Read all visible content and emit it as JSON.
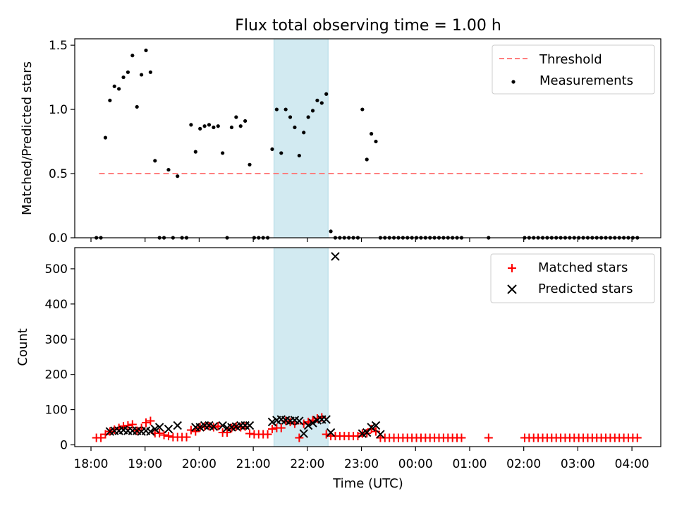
{
  "chart_data": [
    {
      "type": "scatter",
      "title": "Flux total observing time = 1.00 h",
      "xlabel": "",
      "ylabel": "Matched/Predicted stars",
      "ylim": [
        0,
        1.55
      ],
      "yticks": [
        "0.0",
        "0.5",
        "1.0",
        "1.5"
      ],
      "xlim": [
        "17:42",
        "04:32"
      ],
      "highlight_span": {
        "start": "21:23",
        "end": "22:23",
        "color": "#add8e6"
      },
      "legend": {
        "position": "top-right",
        "entries": [
          "Threshold",
          "Measurements"
        ]
      },
      "series": [
        {
          "name": "Threshold",
          "style": "dashed-line",
          "color": "#ff7f7f",
          "x": [
            "18:09",
            "04:12"
          ],
          "y": [
            0.5,
            0.5
          ]
        },
        {
          "name": "Measurements",
          "style": "dot",
          "color": "#000000",
          "x": [
            "18:06",
            "18:11",
            "18:16",
            "18:21",
            "18:26",
            "18:31",
            "18:36",
            "18:41",
            "18:46",
            "18:51",
            "18:56",
            "19:01",
            "19:06",
            "19:11",
            "19:16",
            "19:21",
            "19:26",
            "19:31",
            "19:36",
            "19:41",
            "19:46",
            "19:51",
            "19:56",
            "20:01",
            "20:06",
            "20:11",
            "20:16",
            "20:21",
            "20:26",
            "20:31",
            "20:36",
            "20:41",
            "20:46",
            "20:51",
            "20:56",
            "21:01",
            "21:06",
            "21:11",
            "21:16",
            "21:21",
            "21:26",
            "21:31",
            "21:36",
            "21:41",
            "21:46",
            "21:51",
            "21:56",
            "22:01",
            "22:06",
            "22:11",
            "22:16",
            "22:21",
            "22:26",
            "22:31",
            "22:36",
            "22:41",
            "22:46",
            "22:51",
            "22:56",
            "23:01",
            "23:06",
            "23:11",
            "23:16",
            "23:21",
            "23:26",
            "23:31",
            "23:36",
            "23:41",
            "23:46",
            "23:51",
            "23:56",
            "00:01",
            "00:06",
            "00:11",
            "00:16",
            "00:21",
            "00:26",
            "00:31",
            "00:36",
            "00:41",
            "00:46",
            "00:51",
            "01:21",
            "02:01",
            "02:06",
            "02:11",
            "02:16",
            "02:21",
            "02:26",
            "02:31",
            "02:36",
            "02:41",
            "02:46",
            "02:51",
            "02:56",
            "03:01",
            "03:06",
            "03:11",
            "03:16",
            "03:21",
            "03:26",
            "03:31",
            "03:36",
            "03:41",
            "03:46",
            "03:51",
            "03:56",
            "04:01",
            "04:06"
          ],
          "y": [
            0,
            0,
            0.78,
            1.07,
            1.18,
            1.16,
            1.25,
            1.29,
            1.42,
            1.02,
            1.27,
            1.46,
            1.29,
            0.6,
            0,
            0,
            0.53,
            0,
            0.48,
            0,
            0,
            0.88,
            0.67,
            0.85,
            0.87,
            0.88,
            0.86,
            0.87,
            0.66,
            0,
            0.86,
            0.94,
            0.87,
            0.91,
            0.57,
            0,
            0,
            0,
            0,
            0.69,
            1.0,
            0.66,
            1.0,
            0.94,
            0.86,
            0.64,
            0.82,
            0.94,
            0.99,
            1.07,
            1.05,
            1.12,
            0.05,
            0,
            0,
            0,
            0,
            0,
            0,
            1.0,
            0.61,
            0.81,
            0.75,
            0,
            0,
            0,
            0,
            0,
            0,
            0,
            0,
            0,
            0,
            0,
            0,
            0,
            0,
            0,
            0,
            0,
            0,
            0,
            0,
            0,
            0,
            0,
            0,
            0,
            0,
            0,
            0,
            0,
            0,
            0,
            0,
            0,
            0,
            0,
            0,
            0,
            0,
            0,
            0,
            0,
            0,
            0,
            0,
            0,
            0
          ]
        }
      ]
    },
    {
      "type": "scatter",
      "title": "",
      "xlabel": "Time (UTC)",
      "ylabel": "Count",
      "ylim": [
        -5,
        560
      ],
      "yticks": [
        "0",
        "100",
        "200",
        "300",
        "400",
        "500"
      ],
      "xlim": [
        "17:42",
        "04:32"
      ],
      "xticks": [
        "18:00",
        "19:00",
        "20:00",
        "21:00",
        "22:00",
        "23:00",
        "00:00",
        "01:00",
        "02:00",
        "03:00",
        "04:00"
      ],
      "highlight_span": {
        "start": "21:23",
        "end": "22:23",
        "color": "#add8e6"
      },
      "legend": {
        "position": "top-right",
        "entries": [
          "Matched stars",
          "Predicted stars"
        ]
      },
      "series": [
        {
          "name": "Matched stars",
          "marker": "+",
          "color": "#ff0000",
          "x": [
            "18:06",
            "18:11",
            "18:16",
            "18:21",
            "18:26",
            "18:31",
            "18:36",
            "18:41",
            "18:46",
            "18:51",
            "18:56",
            "19:01",
            "19:06",
            "19:11",
            "19:16",
            "19:21",
            "19:26",
            "19:31",
            "19:36",
            "19:41",
            "19:46",
            "19:51",
            "19:56",
            "20:01",
            "20:06",
            "20:11",
            "20:16",
            "20:21",
            "20:26",
            "20:31",
            "20:36",
            "20:41",
            "20:46",
            "20:51",
            "20:56",
            "21:01",
            "21:06",
            "21:11",
            "21:16",
            "21:21",
            "21:26",
            "21:31",
            "21:36",
            "21:41",
            "21:46",
            "21:51",
            "21:56",
            "22:01",
            "22:06",
            "22:11",
            "22:16",
            "22:21",
            "22:26",
            "22:31",
            "22:36",
            "22:41",
            "22:46",
            "22:51",
            "22:56",
            "23:01",
            "23:06",
            "23:11",
            "23:16",
            "23:21",
            "23:26",
            "23:31",
            "23:36",
            "23:41",
            "23:46",
            "23:51",
            "23:56",
            "00:01",
            "00:06",
            "00:11",
            "00:16",
            "00:21",
            "00:26",
            "00:31",
            "00:36",
            "00:41",
            "00:46",
            "00:51",
            "01:21",
            "02:01",
            "02:06",
            "02:11",
            "02:16",
            "02:21",
            "02:26",
            "02:31",
            "02:36",
            "02:41",
            "02:46",
            "02:51",
            "02:56",
            "03:01",
            "03:06",
            "03:11",
            "03:16",
            "03:21",
            "03:26",
            "03:31",
            "03:36",
            "03:41",
            "03:46",
            "03:51",
            "03:56",
            "04:01",
            "04:06"
          ],
          "y": [
            20,
            20,
            30,
            38,
            43,
            48,
            53,
            55,
            58,
            40,
            48,
            63,
            68,
            33,
            33,
            28,
            25,
            22,
            22,
            22,
            22,
            42,
            38,
            50,
            52,
            53,
            50,
            53,
            35,
            35,
            48,
            52,
            50,
            52,
            32,
            30,
            30,
            30,
            30,
            45,
            48,
            48,
            68,
            65,
            60,
            20,
            60,
            65,
            70,
            75,
            78,
            30,
            25,
            25,
            25,
            25,
            25,
            25,
            25,
            32,
            33,
            45,
            38,
            20,
            20,
            20,
            20,
            20,
            20,
            20,
            20,
            20,
            20,
            20,
            20,
            20,
            20,
            20,
            20,
            20,
            20,
            20,
            20,
            20,
            20,
            20,
            20,
            20,
            20,
            20,
            20,
            20,
            20,
            20,
            20,
            20,
            20,
            20,
            20,
            20,
            20,
            20,
            20,
            20,
            20,
            20,
            20,
            20,
            20
          ]
        },
        {
          "name": "Predicted stars",
          "marker": "x",
          "color": "#000000",
          "x": [
            "18:21",
            "18:26",
            "18:31",
            "18:36",
            "18:41",
            "18:46",
            "18:51",
            "18:56",
            "19:01",
            "19:06",
            "19:11",
            "19:16",
            "19:26",
            "19:36",
            "19:56",
            "20:01",
            "20:06",
            "20:11",
            "20:16",
            "20:26",
            "20:31",
            "20:36",
            "20:41",
            "20:46",
            "20:51",
            "20:56",
            "21:21",
            "21:26",
            "21:31",
            "21:36",
            "21:41",
            "21:46",
            "21:51",
            "21:56",
            "22:01",
            "22:06",
            "22:11",
            "22:16",
            "22:21",
            "22:26",
            "22:31",
            "23:01",
            "23:06",
            "23:11",
            "23:16",
            "23:21"
          ],
          "y": [
            38,
            40,
            40,
            42,
            40,
            40,
            40,
            38,
            40,
            38,
            45,
            50,
            45,
            55,
            50,
            50,
            55,
            55,
            52,
            55,
            48,
            50,
            52,
            55,
            55,
            55,
            65,
            70,
            72,
            70,
            68,
            70,
            68,
            32,
            55,
            62,
            70,
            72,
            72,
            35,
            535,
            32,
            35,
            50,
            55,
            30
          ]
        }
      ]
    }
  ]
}
